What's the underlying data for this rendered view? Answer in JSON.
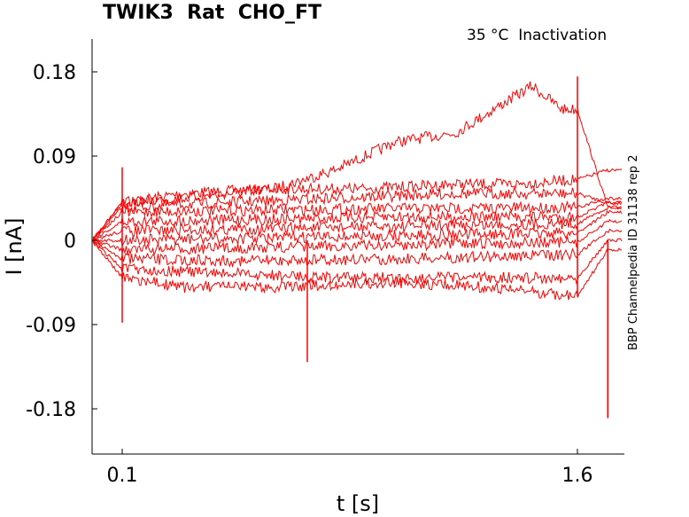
{
  "header": {
    "title": "TWIK3  Rat  CHO_FT",
    "subtitle": "35 °C  Inactivation",
    "side_label": "BBP Channelpedia ID 31138 rep 2"
  },
  "chart_data": {
    "type": "line",
    "title": "TWIK3  Rat  CHO_FT",
    "xlabel": "t [s]",
    "ylabel": "I [nA]",
    "x_ticks": [
      0.1,
      1.6
    ],
    "x_tick_labels": [
      "0.1",
      "1.6"
    ],
    "y_ticks": [
      0.18,
      0.09,
      0,
      -0.09,
      -0.18
    ],
    "y_tick_labels": [
      "0.18",
      "0.09",
      "0",
      "-0.09",
      "-0.18"
    ],
    "xlim": [
      0.0,
      1.75
    ],
    "ylim": [
      -0.23,
      0.22
    ],
    "grid": false,
    "line_color": "#ff0000",
    "series": [
      {
        "x": [
          0.0,
          0.1,
          0.3,
          0.6,
          0.8,
          1.0,
          1.2,
          1.35,
          1.45,
          1.55,
          1.6,
          1.7
        ],
        "y": [
          0.0,
          0.04,
          0.05,
          0.055,
          0.075,
          0.105,
          0.115,
          0.145,
          0.165,
          0.14,
          0.14,
          0.035
        ]
      },
      {
        "x": [
          0.0,
          0.1,
          0.3,
          0.6,
          0.9,
          1.2,
          1.4,
          1.6,
          1.7
        ],
        "y": [
          0.0,
          0.04,
          0.045,
          0.055,
          0.055,
          0.06,
          0.06,
          0.065,
          0.075
        ]
      },
      {
        "x": [
          0.0,
          0.1,
          0.4,
          0.8,
          1.2,
          1.6,
          1.7
        ],
        "y": [
          0.0,
          0.035,
          0.04,
          0.045,
          0.05,
          0.05,
          0.04
        ]
      },
      {
        "x": [
          0.0,
          0.1,
          0.5,
          1.0,
          1.6,
          1.7
        ],
        "y": [
          0.0,
          0.03,
          0.032,
          0.034,
          0.035,
          0.045
        ]
      },
      {
        "x": [
          0.0,
          0.1,
          0.5,
          1.0,
          1.6,
          1.7
        ],
        "y": [
          0.0,
          0.02,
          0.022,
          0.025,
          0.025,
          0.04
        ]
      },
      {
        "x": [
          0.0,
          0.1,
          0.5,
          1.0,
          1.6,
          1.7
        ],
        "y": [
          0.0,
          0.01,
          0.012,
          0.015,
          0.018,
          0.035
        ]
      },
      {
        "x": [
          0.0,
          0.1,
          0.5,
          1.0,
          1.6,
          1.7
        ],
        "y": [
          0.0,
          0.0,
          0.002,
          0.005,
          0.008,
          0.03
        ]
      },
      {
        "x": [
          0.0,
          0.1,
          0.5,
          1.0,
          1.6,
          1.7
        ],
        "y": [
          0.0,
          -0.01,
          -0.008,
          -0.005,
          -0.002,
          0.02
        ]
      },
      {
        "x": [
          0.0,
          0.1,
          0.5,
          1.0,
          1.6,
          1.7
        ],
        "y": [
          0.0,
          -0.02,
          -0.022,
          -0.02,
          -0.015,
          0.01
        ]
      },
      {
        "x": [
          0.0,
          0.1,
          0.4,
          0.8,
          1.2,
          1.6,
          1.7
        ],
        "y": [
          0.0,
          -0.03,
          -0.035,
          -0.04,
          -0.04,
          -0.04,
          0.0
        ]
      },
      {
        "x": [
          0.0,
          0.1,
          0.3,
          0.6,
          1.0,
          1.3,
          1.6,
          1.7
        ],
        "y": [
          0.0,
          -0.04,
          -0.05,
          -0.05,
          -0.045,
          -0.05,
          -0.06,
          -0.01
        ]
      }
    ],
    "transients": [
      {
        "x": 0.1,
        "y_min": -0.088,
        "y_max": 0.078
      },
      {
        "x": 0.71,
        "y_min": -0.13,
        "y_max": 0.0
      },
      {
        "x": 1.6,
        "y_min": -0.06,
        "y_max": 0.175
      },
      {
        "x": 1.7,
        "y_min": -0.19,
        "y_max": 0.0
      }
    ]
  }
}
